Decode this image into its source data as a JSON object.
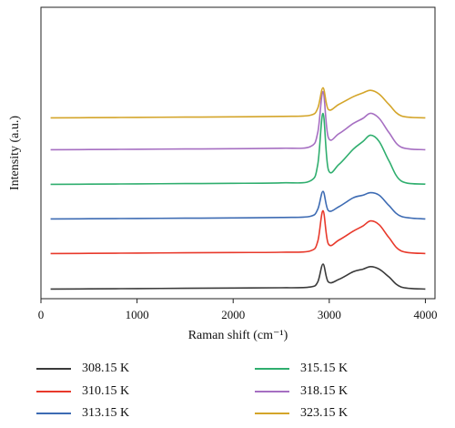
{
  "chart_data": {
    "type": "line",
    "title": "",
    "xlabel": "Raman shift (cm⁻¹)",
    "ylabel": "Intensity (a.u.)",
    "xlim": [
      0,
      4100
    ],
    "xticks": [
      0,
      1000,
      2000,
      3000,
      4000
    ],
    "x_tick_labels": [
      "0",
      "1000",
      "2000",
      "3000",
      "4000"
    ],
    "y_ticks_shown": false,
    "grid": false,
    "legend_position": "bottom",
    "stacked_offset": true,
    "colors": [
      "#3a3a3a",
      "#e8392b",
      "#3d6bb3",
      "#2fae6e",
      "#a66fc2",
      "#d4a52a"
    ],
    "series": [
      {
        "name": "308.15 K",
        "color": "#3a3a3a",
        "x": [
          100,
          500,
          1000,
          1500,
          2000,
          2500,
          2800,
          2880,
          2935,
          2990,
          3100,
          3250,
          3350,
          3430,
          3520,
          3620,
          3750,
          4000
        ],
        "y": [
          0.02,
          0.03,
          0.04,
          0.05,
          0.06,
          0.07,
          0.1,
          0.3,
          1.0,
          0.3,
          0.4,
          0.7,
          0.8,
          0.9,
          0.8,
          0.5,
          0.1,
          0.02
        ]
      },
      {
        "name": "310.15 K",
        "color": "#e8392b",
        "x": [
          100,
          500,
          1000,
          1500,
          2000,
          2500,
          2800,
          2880,
          2935,
          2990,
          3100,
          3250,
          3350,
          3430,
          3520,
          3620,
          3750,
          4000
        ],
        "y": [
          0.02,
          0.03,
          0.04,
          0.05,
          0.06,
          0.07,
          0.12,
          0.5,
          1.7,
          0.4,
          0.55,
          0.9,
          1.1,
          1.3,
          1.15,
          0.65,
          0.12,
          0.02
        ]
      },
      {
        "name": "313.15 K",
        "color": "#3d6bb3",
        "x": [
          100,
          500,
          1000,
          1500,
          2000,
          2500,
          2800,
          2880,
          2935,
          2990,
          3100,
          3250,
          3350,
          3430,
          3520,
          3620,
          3750,
          4000
        ],
        "y": [
          0.02,
          0.03,
          0.04,
          0.05,
          0.06,
          0.08,
          0.12,
          0.4,
          1.1,
          0.35,
          0.5,
          0.85,
          0.95,
          1.05,
          0.95,
          0.55,
          0.12,
          0.02
        ]
      },
      {
        "name": "315.15 K",
        "color": "#2fae6e",
        "x": [
          100,
          500,
          1000,
          1500,
          2000,
          2500,
          2800,
          2880,
          2935,
          2990,
          3100,
          3250,
          3350,
          3430,
          3520,
          3620,
          3750,
          4000
        ],
        "y": [
          0.02,
          0.03,
          0.04,
          0.05,
          0.06,
          0.08,
          0.15,
          0.8,
          2.8,
          0.6,
          0.8,
          1.4,
          1.7,
          1.95,
          1.7,
          0.95,
          0.15,
          0.03
        ]
      },
      {
        "name": "318.15 K",
        "color": "#a66fc2",
        "x": [
          100,
          500,
          1000,
          1500,
          2000,
          2500,
          2800,
          2880,
          2935,
          2990,
          3100,
          3250,
          3350,
          3430,
          3520,
          3620,
          3750,
          4000
        ],
        "y": [
          0.02,
          0.03,
          0.04,
          0.05,
          0.06,
          0.08,
          0.14,
          0.7,
          2.3,
          0.5,
          0.65,
          1.05,
          1.25,
          1.45,
          1.25,
          0.7,
          0.12,
          0.02
        ]
      },
      {
        "name": "323.15 K",
        "color": "#d4a52a",
        "x": [
          100,
          500,
          1000,
          1500,
          2000,
          2500,
          2800,
          2880,
          2935,
          2990,
          3100,
          3250,
          3350,
          3430,
          3520,
          3620,
          3750,
          4000
        ],
        "y": [
          0.02,
          0.03,
          0.04,
          0.05,
          0.06,
          0.08,
          0.12,
          0.4,
          1.2,
          0.35,
          0.55,
          0.85,
          1.0,
          1.1,
          0.95,
          0.55,
          0.1,
          0.02
        ]
      }
    ]
  }
}
